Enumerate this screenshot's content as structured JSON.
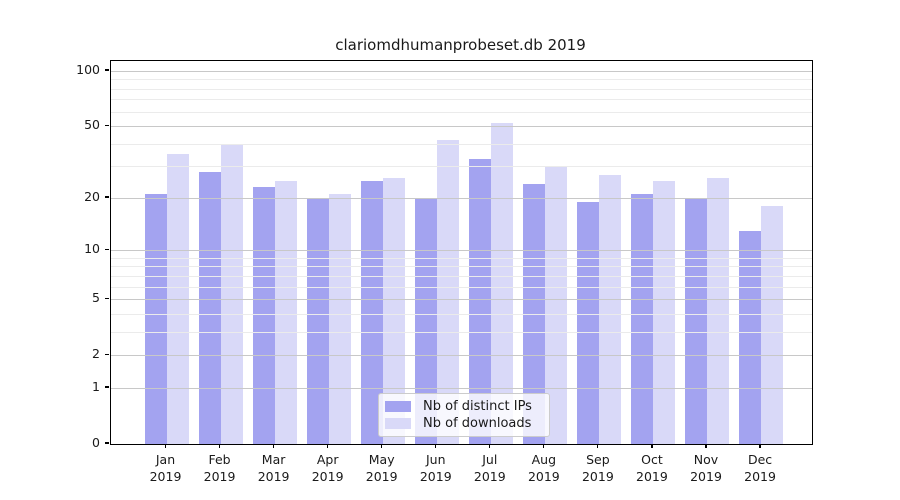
{
  "chart_data": {
    "type": "bar",
    "title": "clariomdhumanprobeset.db 2019",
    "categories": [
      "Jan",
      "Feb",
      "Mar",
      "Apr",
      "May",
      "Jun",
      "Jul",
      "Aug",
      "Sep",
      "Oct",
      "Nov",
      "Dec"
    ],
    "x_year_label": "2019",
    "series": [
      {
        "name": "Nb of distinct IPs",
        "color": "#a3a3f0",
        "values": [
          21,
          28,
          23,
          20,
          25,
          20,
          33,
          24,
          19,
          21,
          20,
          13
        ]
      },
      {
        "name": "Nb of downloads",
        "color": "#d9d9f8",
        "values": [
          35,
          40,
          25,
          21,
          26,
          42,
          52,
          30,
          27,
          25,
          26,
          18
        ]
      }
    ],
    "yscale": "log1p",
    "ylim": [
      0,
      114
    ],
    "yticks": [
      100,
      50,
      20,
      10,
      5,
      2,
      1,
      0
    ],
    "minor_gridlines": [
      3,
      4,
      6,
      7,
      8,
      9,
      30,
      40,
      60,
      70,
      80,
      90
    ],
    "grid": true,
    "legend_position": "lower-center",
    "xlabel": "",
    "ylabel": ""
  },
  "colors": {
    "bar_dark": "#a3a3f0",
    "bar_light": "#d9d9f8",
    "grid_major": "#c8c8c8",
    "grid_minor": "#ebebeb",
    "spine": "#000000",
    "text": "#1a1a1a",
    "legend_border": "#cccccc"
  }
}
